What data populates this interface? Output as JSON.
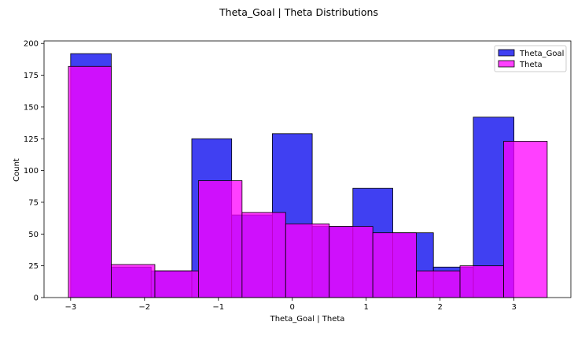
{
  "chart_data": {
    "type": "bar",
    "title": "Theta_Goal | Theta Distributions",
    "xlabel": "Theta_Goal | Theta",
    "ylabel": "Count",
    "xlim": [
      -3.36,
      3.77
    ],
    "ylim": [
      0,
      202
    ],
    "xticks": [
      -3,
      -2,
      -1,
      0,
      1,
      2,
      3
    ],
    "xtick_labels": [
      "−3",
      "−2",
      "−1",
      "0",
      "1",
      "2",
      "3"
    ],
    "yticks": [
      0,
      25,
      50,
      75,
      100,
      125,
      150,
      175,
      200
    ],
    "ytick_labels": [
      "0",
      "25",
      "50",
      "75",
      "100",
      "125",
      "150",
      "175",
      "200"
    ],
    "legend_position": "top-right",
    "series": [
      {
        "name": "Theta_Goal",
        "color": "#0000ee",
        "opacity": 0.75,
        "bins": [
          {
            "x0": -3.0,
            "x1": -2.45,
            "count": 192
          },
          {
            "x0": -2.45,
            "x1": -1.91,
            "count": 24
          },
          {
            "x0": -1.91,
            "x1": -1.36,
            "count": 21
          },
          {
            "x0": -1.36,
            "x1": -0.82,
            "count": 125
          },
          {
            "x0": -0.82,
            "x1": -0.27,
            "count": 65
          },
          {
            "x0": -0.27,
            "x1": 0.27,
            "count": 129
          },
          {
            "x0": 0.27,
            "x1": 0.82,
            "count": 56
          },
          {
            "x0": 0.82,
            "x1": 1.36,
            "count": 86
          },
          {
            "x0": 1.36,
            "x1": 1.91,
            "count": 51
          },
          {
            "x0": 1.91,
            "x1": 2.45,
            "count": 24
          },
          {
            "x0": 2.45,
            "x1": 3.0,
            "count": 142
          }
        ]
      },
      {
        "name": "Theta",
        "color": "#ff00ff",
        "opacity": 0.75,
        "bins": [
          {
            "x0": -3.03,
            "x1": -2.45,
            "count": 182
          },
          {
            "x0": -2.45,
            "x1": -1.86,
            "count": 26
          },
          {
            "x0": -1.86,
            "x1": -1.27,
            "count": 21
          },
          {
            "x0": -1.27,
            "x1": -0.68,
            "count": 92
          },
          {
            "x0": -0.68,
            "x1": -0.09,
            "count": 67
          },
          {
            "x0": -0.09,
            "x1": 0.5,
            "count": 58
          },
          {
            "x0": 0.5,
            "x1": 1.09,
            "count": 56
          },
          {
            "x0": 1.09,
            "x1": 1.68,
            "count": 51
          },
          {
            "x0": 1.68,
            "x1": 2.27,
            "count": 21
          },
          {
            "x0": 2.27,
            "x1": 2.86,
            "count": 25
          },
          {
            "x0": 2.86,
            "x1": 3.45,
            "count": 123
          }
        ]
      }
    ]
  }
}
